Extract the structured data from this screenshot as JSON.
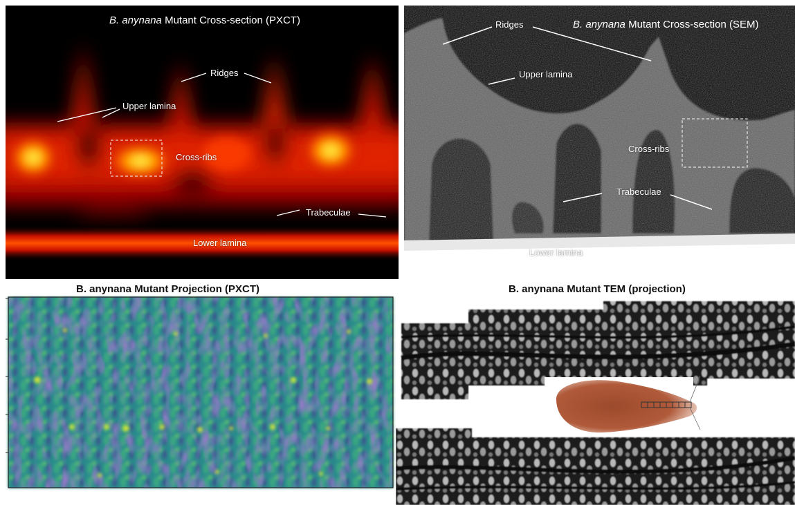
{
  "figure": {
    "panel_a": {
      "title_italic": "B. anynana",
      "title_rest": " Mutant Cross-section (PXCT)",
      "labels": {
        "ridges": "Ridges",
        "upper_lamina": "Upper lamina",
        "cross_ribs": "Cross-ribs",
        "trabeculae": "Trabeculae",
        "lower_lamina": "Lower lamina"
      },
      "colormap": "hot"
    },
    "panel_b": {
      "title_italic": "B. anynana",
      "title_rest": " Mutant Cross-section (SEM)",
      "labels": {
        "ridges": "Ridges",
        "upper_lamina": "Upper lamina",
        "cross_ribs": "Cross-ribs",
        "trabeculae": "Trabeculae",
        "lower_lamina": "Lower lamina"
      },
      "colormap": "grayscale"
    },
    "panel_c": {
      "title": "B. anynana Mutant Projection (PXCT)",
      "colormap": "viridis"
    },
    "panel_d": {
      "title": "B. anynana Mutant TEM (projection)",
      "colormap": "grayscale"
    }
  }
}
